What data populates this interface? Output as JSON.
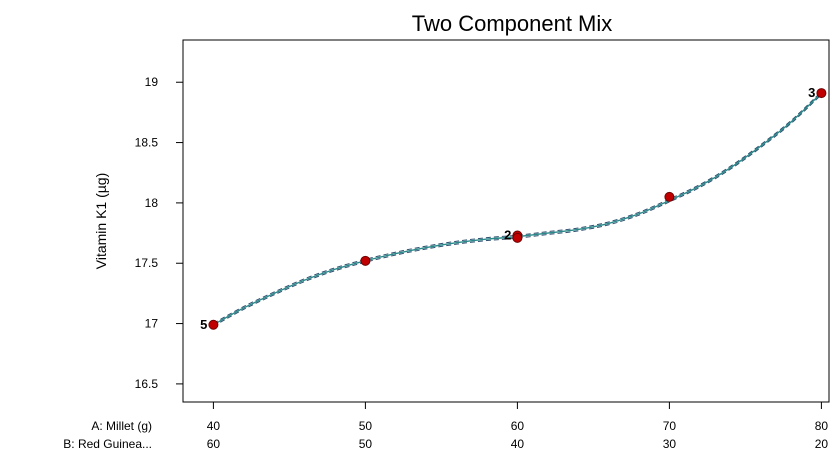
{
  "chart_data": {
    "type": "line",
    "title": "Two Component Mix",
    "ylabel": "Vitamin K1 (µg)",
    "xlim": [
      38,
      80.5
    ],
    "ylim": [
      16.35,
      19.35
    ],
    "yticks": [
      16.5,
      17,
      17.5,
      18,
      18.5,
      19
    ],
    "ytick_labels": [
      "16.5",
      "17",
      "17.5",
      "18",
      "18.5",
      "19"
    ],
    "x_axes": [
      {
        "name": "A: Millet (g)",
        "ticks": [
          40,
          50,
          60,
          70,
          80
        ],
        "labels": [
          "40",
          "50",
          "60",
          "70",
          "80"
        ]
      },
      {
        "name": "B: Red Guinea...",
        "labels": [
          "60",
          "50",
          "40",
          "30",
          "20"
        ]
      }
    ],
    "points": [
      {
        "x": 40,
        "y": 16.99,
        "count": "5"
      },
      {
        "x": 50,
        "y": 17.52,
        "count": ""
      },
      {
        "x": 60,
        "y": 17.73,
        "count": "2"
      },
      {
        "x": 60,
        "y": 17.71,
        "count": ""
      },
      {
        "x": 70,
        "y": 18.05,
        "count": ""
      },
      {
        "x": 80,
        "y": 18.91,
        "count": "3"
      }
    ],
    "fit_curve": {
      "x": [
        40,
        42,
        44,
        46,
        48,
        50,
        52,
        54,
        56,
        58,
        60,
        62,
        64,
        66,
        68,
        70,
        72,
        74,
        76,
        78,
        80
      ],
      "y": [
        16.99,
        17.13,
        17.25,
        17.36,
        17.45,
        17.52,
        17.58,
        17.63,
        17.67,
        17.7,
        17.72,
        17.75,
        17.78,
        17.83,
        17.91,
        18.02,
        18.14,
        18.29,
        18.47,
        18.67,
        18.91
      ]
    },
    "ci_halfwidth": 0.012,
    "grid": false,
    "colors": {
      "fit": "#2a8a8a",
      "ci": "#2f4f6f",
      "point": "#c00000",
      "point_edge": "#700000"
    }
  }
}
